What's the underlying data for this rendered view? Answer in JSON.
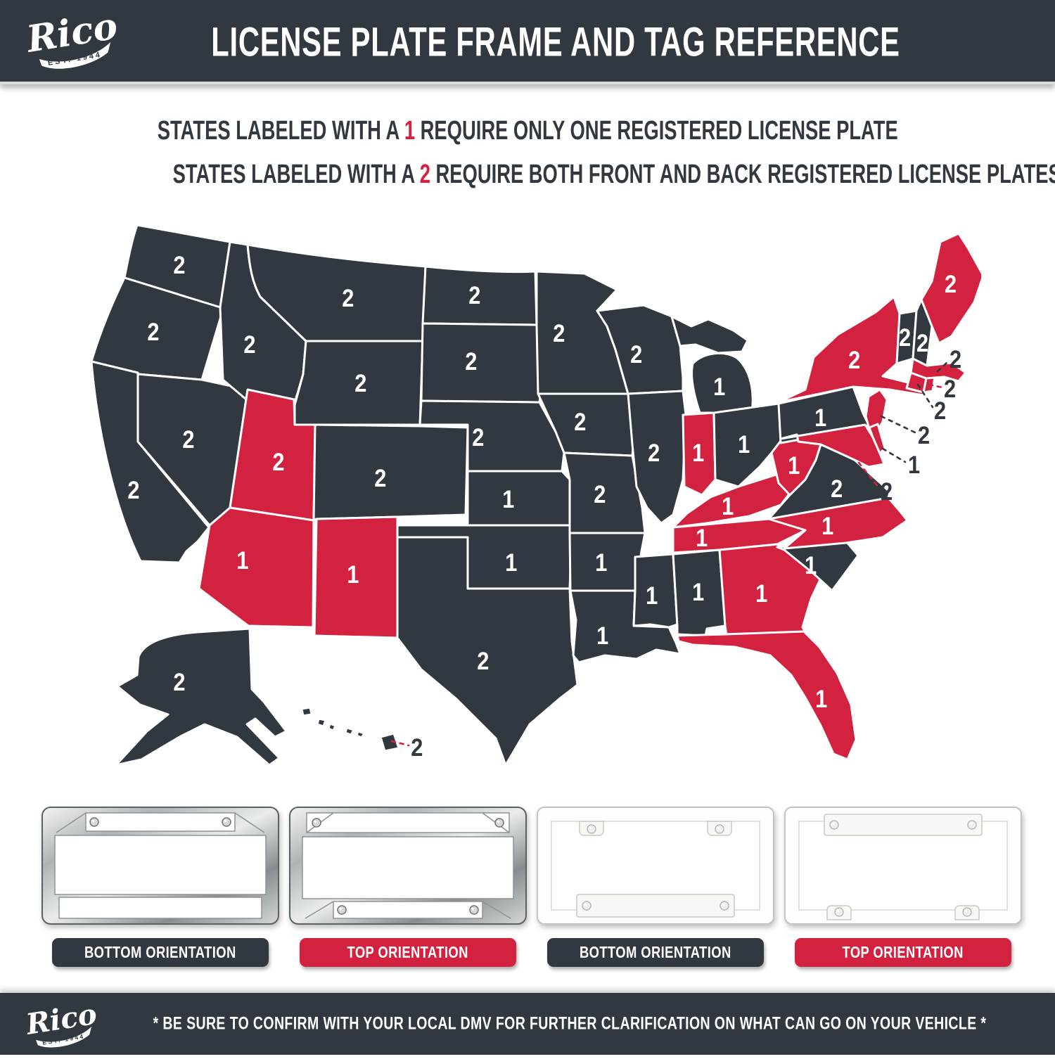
{
  "colors": {
    "dark": "#32383f",
    "red": "#d32240"
  },
  "header": {
    "logo_name": "Rico",
    "logo_est": "EST. 1944",
    "title": "LICENSE PLATE FRAME AND TAG REFERENCE"
  },
  "legend": {
    "line1": {
      "pre": "STATES LABELED WITH A",
      "num": "1",
      "post": "REQUIRE ONLY ONE REGISTERED LICENSE PLATE"
    },
    "line2": {
      "pre": "STATES LABELED WITH A",
      "num": "2",
      "post": "REQUIRE BOTH FRONT AND BACK REGISTERED LICENSE PLATES"
    }
  },
  "map": {
    "states": [
      {
        "id": "WA",
        "name": "Washington",
        "plates": "2",
        "highlighted": false,
        "callout": false
      },
      {
        "id": "OR",
        "name": "Oregon",
        "plates": "2",
        "highlighted": false,
        "callout": false
      },
      {
        "id": "CA",
        "name": "California",
        "plates": "2",
        "highlighted": false,
        "callout": false
      },
      {
        "id": "NV",
        "name": "Nevada",
        "plates": "2",
        "highlighted": false,
        "callout": false
      },
      {
        "id": "ID",
        "name": "Idaho",
        "plates": "2",
        "highlighted": false,
        "callout": false
      },
      {
        "id": "MT",
        "name": "Montana",
        "plates": "2",
        "highlighted": false,
        "callout": false
      },
      {
        "id": "WY",
        "name": "Wyoming",
        "plates": "2",
        "highlighted": false,
        "callout": false
      },
      {
        "id": "UT",
        "name": "Utah",
        "plates": "2",
        "highlighted": true,
        "callout": false
      },
      {
        "id": "CO",
        "name": "Colorado",
        "plates": "2",
        "highlighted": false,
        "callout": false
      },
      {
        "id": "AZ",
        "name": "Arizona",
        "plates": "1",
        "highlighted": true,
        "callout": false
      },
      {
        "id": "NM",
        "name": "New Mexico",
        "plates": "1",
        "highlighted": true,
        "callout": false
      },
      {
        "id": "ND",
        "name": "North Dakota",
        "plates": "2",
        "highlighted": false,
        "callout": false
      },
      {
        "id": "SD",
        "name": "South Dakota",
        "plates": "2",
        "highlighted": false,
        "callout": false
      },
      {
        "id": "NE",
        "name": "Nebraska",
        "plates": "2",
        "highlighted": false,
        "callout": false
      },
      {
        "id": "KS",
        "name": "Kansas",
        "plates": "1",
        "highlighted": false,
        "callout": false
      },
      {
        "id": "OK",
        "name": "Oklahoma",
        "plates": "1",
        "highlighted": false,
        "callout": false
      },
      {
        "id": "TX",
        "name": "Texas",
        "plates": "2",
        "highlighted": false,
        "callout": false
      },
      {
        "id": "MN",
        "name": "Minnesota",
        "plates": "2",
        "highlighted": false,
        "callout": false
      },
      {
        "id": "IA",
        "name": "Iowa",
        "plates": "2",
        "highlighted": false,
        "callout": false
      },
      {
        "id": "MO",
        "name": "Missouri",
        "plates": "2",
        "highlighted": false,
        "callout": false
      },
      {
        "id": "AR",
        "name": "Arkansas",
        "plates": "1",
        "highlighted": false,
        "callout": false
      },
      {
        "id": "LA",
        "name": "Louisiana",
        "plates": "1",
        "highlighted": false,
        "callout": false
      },
      {
        "id": "WI",
        "name": "Wisconsin",
        "plates": "2",
        "highlighted": false,
        "callout": false
      },
      {
        "id": "IL",
        "name": "Illinois",
        "plates": "2",
        "highlighted": false,
        "callout": false
      },
      {
        "id": "MI",
        "name": "Michigan",
        "plates": "1",
        "highlighted": false,
        "callout": false
      },
      {
        "id": "IN",
        "name": "Indiana",
        "plates": "1",
        "highlighted": true,
        "callout": false
      },
      {
        "id": "OH",
        "name": "Ohio",
        "plates": "1",
        "highlighted": false,
        "callout": false
      },
      {
        "id": "KY",
        "name": "Kentucky",
        "plates": "1",
        "highlighted": true,
        "callout": false
      },
      {
        "id": "TN",
        "name": "Tennessee",
        "plates": "1",
        "highlighted": true,
        "callout": false
      },
      {
        "id": "MS",
        "name": "Mississippi",
        "plates": "1",
        "highlighted": false,
        "callout": false
      },
      {
        "id": "AL",
        "name": "Alabama",
        "plates": "1",
        "highlighted": false,
        "callout": false
      },
      {
        "id": "GA",
        "name": "Georgia",
        "plates": "1",
        "highlighted": true,
        "callout": false
      },
      {
        "id": "FL",
        "name": "Florida",
        "plates": "1",
        "highlighted": true,
        "callout": false
      },
      {
        "id": "SC",
        "name": "South Carolina",
        "plates": "1",
        "highlighted": false,
        "callout": false
      },
      {
        "id": "NC",
        "name": "North Carolina",
        "plates": "1",
        "highlighted": true,
        "callout": false
      },
      {
        "id": "VA",
        "name": "Virginia",
        "plates": "2",
        "highlighted": false,
        "callout": false
      },
      {
        "id": "WV",
        "name": "West Virginia",
        "plates": "1",
        "highlighted": true,
        "callout": false
      },
      {
        "id": "PA",
        "name": "Pennsylvania",
        "plates": "1",
        "highlighted": false,
        "callout": false
      },
      {
        "id": "NY",
        "name": "New York",
        "plates": "2",
        "highlighted": true,
        "callout": false
      },
      {
        "id": "NJ",
        "name": "New Jersey",
        "plates": "2",
        "highlighted": true,
        "callout": true
      },
      {
        "id": "DE",
        "name": "Delaware",
        "plates": "1",
        "highlighted": true,
        "callout": true
      },
      {
        "id": "MD",
        "name": "Maryland",
        "plates": "2",
        "highlighted": true,
        "callout": true
      },
      {
        "id": "CT",
        "name": "Connecticut",
        "plates": "2",
        "highlighted": true,
        "callout": true
      },
      {
        "id": "RI",
        "name": "Rhode Island",
        "plates": "2",
        "highlighted": true,
        "callout": true
      },
      {
        "id": "MA",
        "name": "Massachusetts",
        "plates": "2",
        "highlighted": true,
        "callout": true
      },
      {
        "id": "VT",
        "name": "Vermont",
        "plates": "2",
        "highlighted": false,
        "callout": false
      },
      {
        "id": "NH",
        "name": "New Hampshire",
        "plates": "2",
        "highlighted": false,
        "callout": false
      },
      {
        "id": "ME",
        "name": "Maine",
        "plates": "2",
        "highlighted": true,
        "callout": false
      },
      {
        "id": "AK",
        "name": "Alaska",
        "plates": "2",
        "highlighted": false,
        "callout": false
      },
      {
        "id": "HI",
        "name": "Hawaii",
        "plates": "2",
        "highlighted": false,
        "callout": true
      }
    ]
  },
  "frames": [
    {
      "material": "chrome",
      "orientation": "bottom",
      "label": "BOTTOM ORIENTATION",
      "label_style": "dark"
    },
    {
      "material": "chrome",
      "orientation": "top",
      "label": "TOP ORIENTATION",
      "label_style": "red"
    },
    {
      "material": "white",
      "orientation": "bottom",
      "label": "BOTTOM ORIENTATION",
      "label_style": "dark"
    },
    {
      "material": "white",
      "orientation": "top",
      "label": "TOP ORIENTATION",
      "label_style": "red"
    }
  ],
  "footer": {
    "note": "* BE SURE TO CONFIRM WITH YOUR LOCAL DMV FOR FURTHER CLARIFICATION ON WHAT CAN GO ON YOUR VEHICLE *"
  }
}
